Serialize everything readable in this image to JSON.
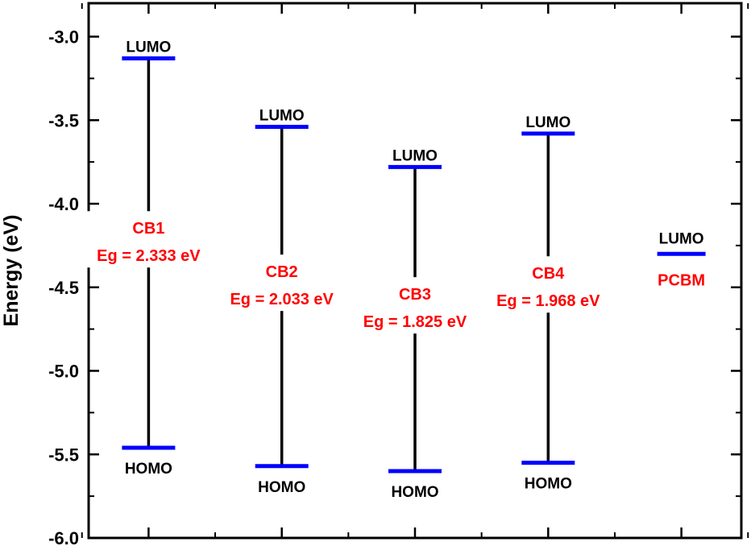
{
  "chart_data": {
    "type": "energy-level-diagram",
    "ylabel": "Energy (eV)",
    "ylim": [
      -6.0,
      -2.8
    ],
    "yticks": [
      -3.0,
      -3.5,
      -4.0,
      -4.5,
      -5.0,
      -5.5,
      -6.0
    ],
    "ytick_labels": [
      "-3.0",
      "-3.5",
      "-4.0",
      "-4.5",
      "-5.0",
      "-5.5",
      "-6.0"
    ],
    "xticks": [
      1,
      2,
      3,
      4,
      5
    ],
    "xlim": [
      0.55,
      5.45
    ],
    "grid": false,
    "colors": {
      "level": "#0000ff",
      "gap_line": "#000000",
      "annotation": "#ff0000",
      "axis": "#000000"
    },
    "level_labels": {
      "lumo": "LUMO",
      "homo": "HOMO"
    },
    "compounds": [
      {
        "x": 1,
        "name": "CB1",
        "lumo": -3.13,
        "homo": -5.46,
        "eg_text": "Eg = 2.333 eV"
      },
      {
        "x": 2,
        "name": "CB2",
        "lumo": -3.54,
        "homo": -5.57,
        "eg_text": "Eg = 2.033 eV"
      },
      {
        "x": 3,
        "name": "CB3",
        "lumo": -3.78,
        "homo": -5.6,
        "eg_text": "Eg = 1.825 eV"
      },
      {
        "x": 4,
        "name": "CB4",
        "lumo": -3.58,
        "homo": -5.55,
        "eg_text": "Eg =  1.968 eV"
      }
    ],
    "acceptor": {
      "x": 5,
      "name": "PCBM",
      "lumo": -4.3
    }
  }
}
